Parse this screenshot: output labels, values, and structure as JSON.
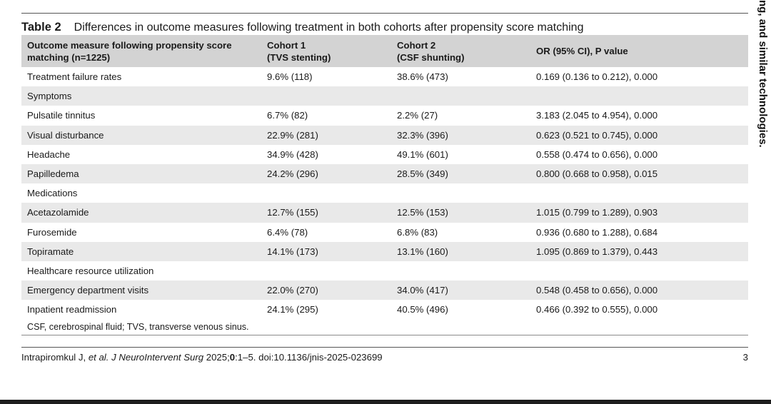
{
  "side_text": "ng, and similar technologies.",
  "table": {
    "number": "Table 2",
    "title": "Differences in outcome measures following treatment in both cohorts after propensity score matching",
    "headers": [
      [
        "Outcome measure following propensity score",
        "matching (n=1225)"
      ],
      [
        "Cohort 1",
        "(TVS stenting)"
      ],
      [
        "Cohort 2",
        "(CSF shunting)"
      ],
      [
        "",
        "OR (95% CI), P value"
      ]
    ],
    "rows": [
      [
        "Treatment failure rates",
        "9.6% (118)",
        "38.6% (473)",
        "0.169 (0.136 to 0.212), 0.000"
      ],
      [
        "Symptoms",
        "",
        "",
        ""
      ],
      [
        "Pulsatile tinnitus",
        "6.7% (82)",
        "2.2% (27)",
        "3.183 (2.045 to 4.954), 0.000"
      ],
      [
        "Visual disturbance",
        "22.9% (281)",
        "32.3% (396)",
        "0.623 (0.521 to 0.745), 0.000"
      ],
      [
        "Headache",
        "34.9% (428)",
        "49.1% (601)",
        "0.558 (0.474 to 0.656), 0.000"
      ],
      [
        "Papilledema",
        "24.2% (296)",
        "28.5% (349)",
        "0.800 (0.668 to 0.958), 0.015"
      ],
      [
        "Medications",
        "",
        "",
        ""
      ],
      [
        "Acetazolamide",
        "12.7% (155)",
        "12.5% (153)",
        "1.015 (0.799 to 1.289), 0.903"
      ],
      [
        "Furosemide",
        "6.4% (78)",
        "6.8% (83)",
        "0.936 (0.680 to 1.288), 0.684"
      ],
      [
        "Topiramate",
        "14.1% (173)",
        "13.1% (160)",
        "1.095 (0.869 to 1.379), 0.443"
      ],
      [
        "Healthcare resource utilization",
        "",
        "",
        ""
      ],
      [
        "Emergency department visits",
        "22.0% (270)",
        "34.0% (417)",
        "0.548 (0.458 to 0.656), 0.000"
      ],
      [
        "Inpatient readmission",
        "24.1% (295)",
        "40.5% (496)",
        "0.466 (0.392 to 0.555), 0.000"
      ]
    ],
    "footnote": "CSF, cerebrospinal fluid; TVS, transverse venous sinus."
  },
  "footer": {
    "authors": "Intrapiromkul J, ",
    "etal": "et al",
    "journal": ". J NeuroIntervent Surg",
    "year": " 2025;",
    "volume": "0",
    "pages_doi": ":1–5. doi:10.1136/jnis-2025-023699",
    "page_number": "3"
  },
  "colors": {
    "header_bg": "#d3d3d3",
    "stripe_bg": "#e9e9e9"
  }
}
